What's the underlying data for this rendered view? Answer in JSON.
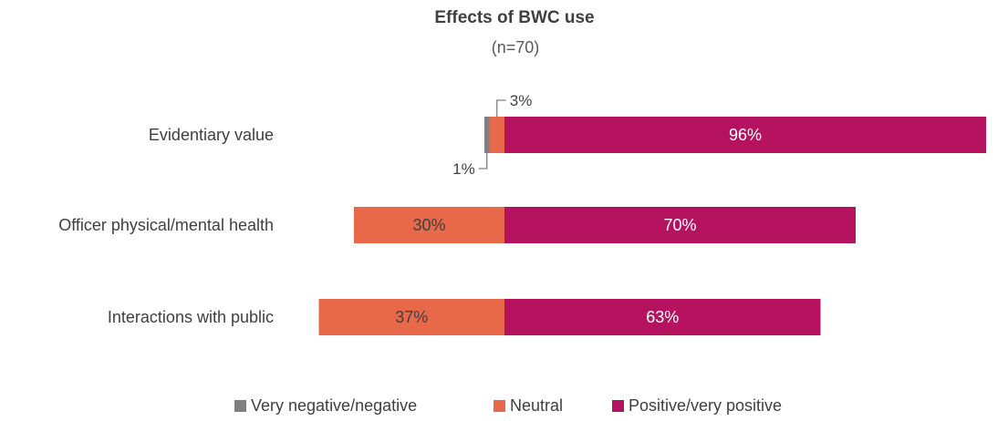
{
  "chart_data": {
    "type": "bar",
    "orientation": "horizontal",
    "stacked": "diverging",
    "title": "Effects of BWC use",
    "subtitle": "(n=70)",
    "categories": [
      "Evidentiary value",
      "Officer physical/mental health",
      "Interactions with public"
    ],
    "series": [
      {
        "name": "Very negative/negative",
        "values": [
          1,
          0,
          0
        ],
        "color": "#808080",
        "labels": [
          "1%",
          "",
          ""
        ]
      },
      {
        "name": "Neutral",
        "values": [
          3,
          30,
          37
        ],
        "color": "#E8694A",
        "labels": [
          "3%",
          "30%",
          "37%"
        ]
      },
      {
        "name": "Positive/very positive",
        "values": [
          96,
          70,
          63
        ],
        "color": "#B5135F",
        "labels": [
          "96%",
          "70%",
          "63%"
        ]
      }
    ],
    "label_colors": {
      "Neutral": "#404040",
      "Positive/very positive": "#ffffff"
    },
    "legend_position": "bottom",
    "grid": false
  }
}
